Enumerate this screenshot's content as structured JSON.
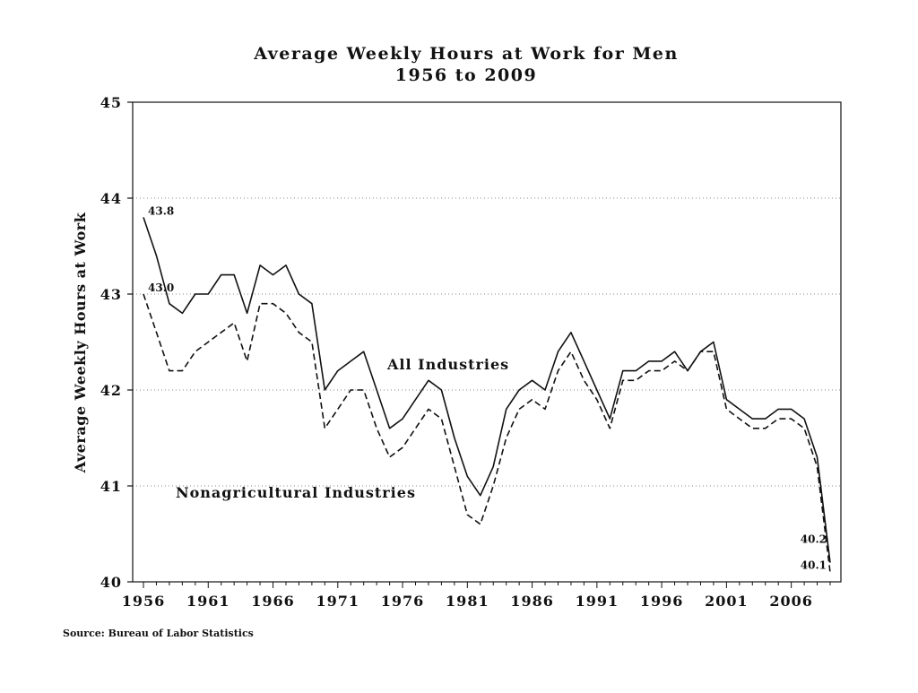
{
  "chart_data": {
    "type": "line",
    "title": "Average Weekly Hours at Work for Men",
    "subtitle": "1956 to 2009",
    "xlabel": "",
    "ylabel": "Average Weekly Hours at Work",
    "ylim": [
      40,
      45
    ],
    "xlim": [
      1956,
      2009
    ],
    "grid": "horizontal dotted",
    "legend": "none (inline labels)",
    "x_tick_labels": [
      "1956",
      "1961",
      "1966",
      "1971",
      "1976",
      "1981",
      "1986",
      "1991",
      "1996",
      "2001",
      "2006"
    ],
    "y_tick_labels": [
      "40",
      "41",
      "42",
      "43",
      "44",
      "45"
    ],
    "x": [
      1956,
      1957,
      1958,
      1959,
      1960,
      1961,
      1962,
      1963,
      1964,
      1965,
      1966,
      1967,
      1968,
      1969,
      1970,
      1971,
      1972,
      1973,
      1974,
      1975,
      1976,
      1977,
      1978,
      1979,
      1980,
      1981,
      1982,
      1983,
      1984,
      1985,
      1986,
      1987,
      1988,
      1989,
      1990,
      1991,
      1992,
      1993,
      1994,
      1995,
      1996,
      1997,
      1998,
      1999,
      2000,
      2001,
      2002,
      2003,
      2004,
      2005,
      2006,
      2007,
      2008,
      2009
    ],
    "series": [
      {
        "name": "All Industries",
        "line_style": "solid",
        "values": [
          43.8,
          43.4,
          42.9,
          42.8,
          43.0,
          43.0,
          43.2,
          43.2,
          42.8,
          43.3,
          43.2,
          43.3,
          43.0,
          42.9,
          42.0,
          42.2,
          42.3,
          42.4,
          42.0,
          41.6,
          41.7,
          41.9,
          42.1,
          42.0,
          41.5,
          41.1,
          40.9,
          41.2,
          41.8,
          42.0,
          42.1,
          42.0,
          42.4,
          42.6,
          42.3,
          42.0,
          41.7,
          42.2,
          42.2,
          42.3,
          42.3,
          42.4,
          42.2,
          42.4,
          42.5,
          41.9,
          41.8,
          41.7,
          41.7,
          41.8,
          41.8,
          41.7,
          41.3,
          40.2
        ]
      },
      {
        "name": "Nonagricultural Industries",
        "line_style": "dashed",
        "values": [
          43.0,
          42.6,
          42.2,
          42.2,
          42.4,
          42.5,
          42.6,
          42.7,
          42.3,
          42.9,
          42.9,
          42.8,
          42.6,
          42.5,
          41.6,
          41.8,
          42.0,
          42.0,
          41.6,
          41.3,
          41.4,
          41.6,
          41.8,
          41.7,
          41.2,
          40.7,
          40.6,
          41.0,
          41.5,
          41.8,
          41.9,
          41.8,
          42.2,
          42.4,
          42.1,
          41.9,
          41.6,
          42.1,
          42.1,
          42.2,
          42.2,
          42.3,
          42.2,
          42.4,
          42.4,
          41.8,
          41.7,
          41.6,
          41.6,
          41.7,
          41.7,
          41.6,
          41.2,
          40.1
        ]
      }
    ],
    "annotations": [
      {
        "text": "43.8",
        "series": 0,
        "year": 1956
      },
      {
        "text": "43.0",
        "series": 1,
        "year": 1956
      },
      {
        "text": "40.2",
        "series": 0,
        "year": 2009
      },
      {
        "text": "40.1",
        "series": 1,
        "year": 2009
      }
    ],
    "source": "Source: Bureau of Labor Statistics"
  }
}
